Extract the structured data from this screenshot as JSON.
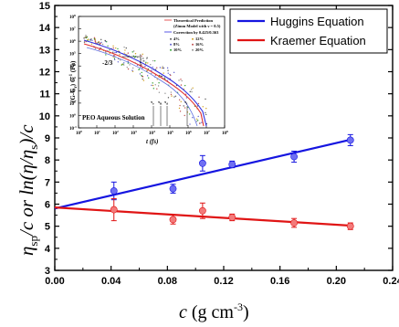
{
  "chart_data": {
    "type": "scatter",
    "xlabel": {
      "main": "c",
      "unit_prefix": " (g cm",
      "unit_exp": "-3",
      "unit_suffix": ")"
    },
    "ylabel": {
      "eta": "η",
      "sub": "sp",
      "mid": "/c or ln(η/η",
      "sub2": "s",
      "end": ")/c"
    },
    "xlim": [
      0.0,
      0.24
    ],
    "ylim": [
      3,
      15
    ],
    "xticks": [
      "0.00",
      "0.04",
      "0.08",
      "0.12",
      "0.16",
      "0.20",
      "0.24"
    ],
    "yticks": [
      "3",
      "4",
      "5",
      "6",
      "7",
      "8",
      "9",
      "10",
      "11",
      "12",
      "13",
      "14",
      "15"
    ],
    "grid": false,
    "legend_position": "top-right",
    "series": [
      {
        "name": "Huggins Equation",
        "color": "#1515e0",
        "point_color": "#6f6ff3",
        "x": [
          0.042,
          0.084,
          0.105,
          0.126,
          0.17,
          0.21
        ],
        "y": [
          6.6,
          6.7,
          7.85,
          7.8,
          8.15,
          8.9
        ],
        "err": [
          0.4,
          0.2,
          0.35,
          0.15,
          0.25,
          0.25
        ],
        "fit": {
          "x": [
            0.0,
            0.212
          ],
          "y": [
            5.8,
            8.95
          ]
        }
      },
      {
        "name": "Kraemer Equation",
        "color": "#e01515",
        "point_color": "#f37a7a",
        "x": [
          0.042,
          0.084,
          0.105,
          0.126,
          0.17,
          0.21
        ],
        "y": [
          5.75,
          5.3,
          5.7,
          5.4,
          5.15,
          5.0
        ],
        "err": [
          0.5,
          0.2,
          0.35,
          0.15,
          0.2,
          0.15
        ],
        "fit": {
          "x": [
            0.0,
            0.212
          ],
          "y": [
            5.85,
            5.02
          ]
        }
      }
    ],
    "inset": {
      "xlabel": "t (fs)",
      "ylabel_main": "(G-G",
      "ylabel_sub": "r",
      "ylabel_end": ") C",
      "ylabel_exp": "-1",
      "ylabel_unit": " (Pa)",
      "xtick_exponents": [
        "0",
        "1",
        "2",
        "3",
        "4",
        "5",
        "6",
        "7",
        "8"
      ],
      "ytick_exponents": [
        "-1",
        "0",
        "1",
        "2",
        "3",
        "4",
        "5",
        "6",
        "7",
        "8"
      ],
      "slope_label": "-2/3",
      "tau_labels": [
        "τ",
        "τ",
        "τ",
        "τ"
      ],
      "tau_subs": [
        "e",
        "R",
        "d",
        "f"
      ],
      "caption": "PEO Aqueous Solution",
      "legend": [
        {
          "text": "Theoretical Prediction",
          "color": "#e03030"
        },
        {
          "text": "(Zimm Model with ν = 0.5)",
          "color": "#e03030"
        },
        {
          "text": "Correction by 0.425/0.363",
          "color": "#3030e0"
        }
      ],
      "legend_percents": [
        "4%",
        "12%",
        "8%",
        "16%",
        "10%",
        "20%"
      ],
      "percent_colors": [
        "#555555",
        "#d0a020",
        "#6060d0",
        "#c05050",
        "#30a030",
        "#909090"
      ]
    }
  }
}
